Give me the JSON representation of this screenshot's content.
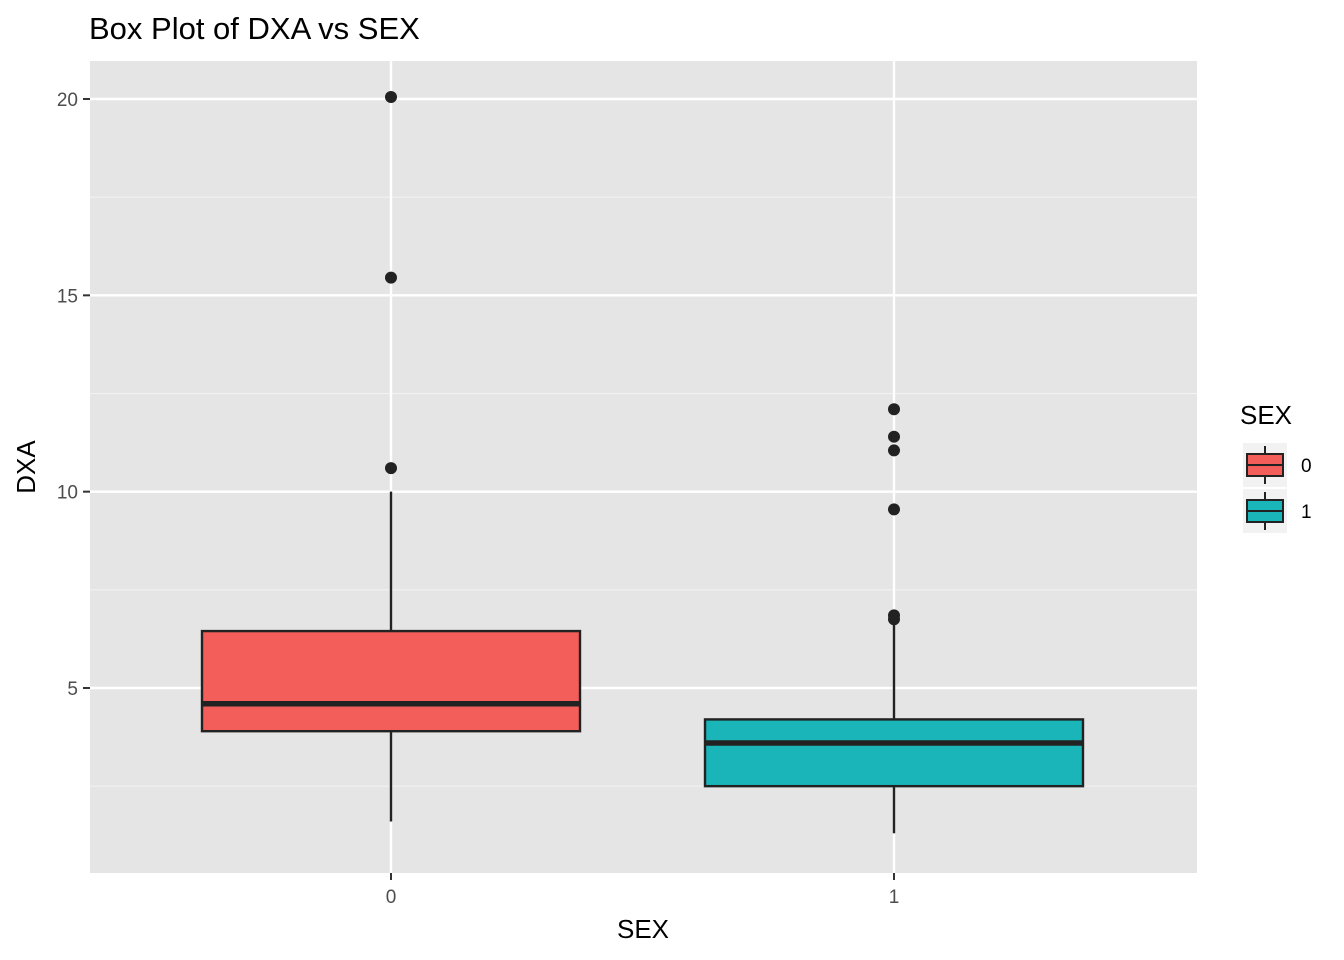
{
  "chart_data": {
    "type": "box",
    "title": "Box Plot of DXA vs SEX",
    "xlabel": "SEX",
    "ylabel": "DXA",
    "ylim": [
      0.5,
      21
    ],
    "yticks": [
      5,
      10,
      15,
      20
    ],
    "grid": true,
    "legend": {
      "title": "SEX",
      "position": "right",
      "entries": [
        "0",
        "1"
      ]
    },
    "categories": [
      "0",
      "1"
    ],
    "series": [
      {
        "category": "0",
        "color": "#F35E5A",
        "min": 1.6,
        "q1": 3.9,
        "median": 4.6,
        "q3": 6.45,
        "max": 10.0,
        "outliers": [
          10.6,
          15.45,
          20.05
        ]
      },
      {
        "category": "1",
        "color": "#19B5B9",
        "min": 1.3,
        "q1": 2.5,
        "median": 3.6,
        "q3": 4.2,
        "max": 6.7,
        "outliers": [
          6.75,
          6.85,
          9.55,
          11.05,
          11.4,
          12.1
        ]
      }
    ]
  }
}
